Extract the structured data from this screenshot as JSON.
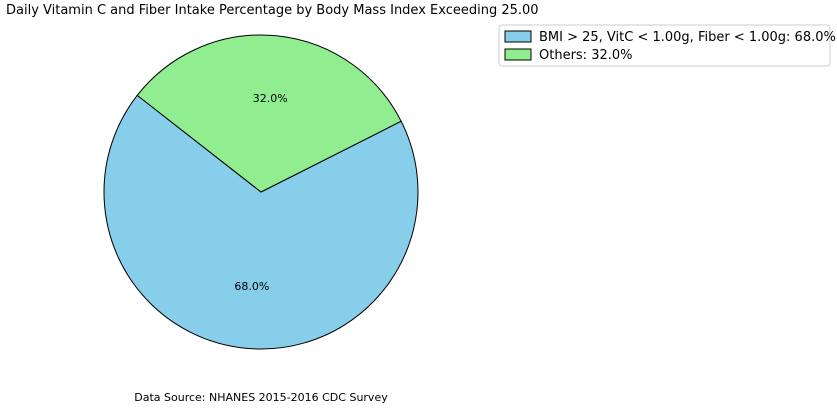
{
  "chart_data": {
    "type": "pie",
    "title": "Daily Vitamin C and Fiber Intake Percentage by Body Mass Index Exceeding 25.00",
    "slices": [
      {
        "label": "BMI > 25, VitC < 1.00g, Fiber < 1.00g",
        "value": 68.0,
        "pct_label": "68.0%",
        "legend_text": "BMI > 25, VitC < 1.00g, Fiber < 1.00g: 68.0%",
        "color": "#87ceeb"
      },
      {
        "label": "Others",
        "value": 32.0,
        "pct_label": "32.0%",
        "legend_text": "Others: 32.0%",
        "color": "#90ee90"
      }
    ],
    "legend_position": "top-right",
    "source_note": "Data Source: NHANES 2015-2016 CDC Survey",
    "edge_color": "#000000"
  }
}
